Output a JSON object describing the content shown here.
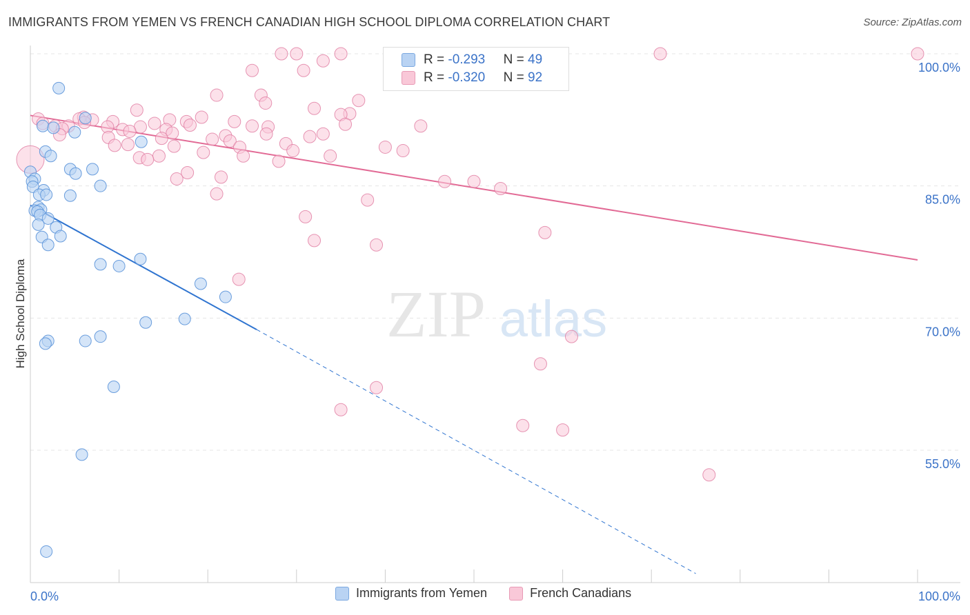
{
  "title": "IMMIGRANTS FROM YEMEN VS FRENCH CANADIAN HIGH SCHOOL DIPLOMA CORRELATION CHART",
  "source": "Source: ZipAtlas.com",
  "watermark": {
    "zip": "ZIP",
    "atlas": "atlas"
  },
  "colors": {
    "blue": "#5b93d9",
    "blue_fill": "#b9d3f3",
    "pink": "#e07aa0",
    "pink_fill": "#f9c8d8",
    "blue_line": "#2f74d0",
    "pink_line": "#e26a95"
  },
  "stats": {
    "row1": {
      "r_label": "R = ",
      "r_value": "-0.293",
      "n_label": "N = ",
      "n_value": "49"
    },
    "row2": {
      "r_label": "R = ",
      "r_value": "-0.320",
      "n_label": "N = ",
      "n_value": "92"
    }
  },
  "legend": {
    "series1": "Immigrants from Yemen",
    "series2": "French Canadians"
  },
  "chart_data": {
    "type": "scatter",
    "title": "IMMIGRANTS FROM YEMEN VS FRENCH CANADIAN HIGH SCHOOL DIPLOMA CORRELATION CHART",
    "xlabel": "",
    "ylabel": "High School Diploma",
    "xlim": [
      0,
      100
    ],
    "ylim": [
      41,
      102
    ],
    "x_tick_labels": [
      "0.0%",
      "100.0%"
    ],
    "y_ticks": [
      55,
      70,
      85,
      100
    ],
    "y_tick_labels": [
      "55.0%",
      "70.0%",
      "85.0%",
      "100.0%"
    ],
    "grid": true,
    "series": [
      {
        "name": "Immigrants from Yemen",
        "color": "#5b93d9",
        "trend": {
          "x": [
            0,
            25.5
          ],
          "y": [
            82.8,
            68.7
          ],
          "dashed_to": [
            75,
            41
          ]
        },
        "points": [
          [
            3.2,
            96.1
          ],
          [
            6.2,
            92.7
          ],
          [
            1.4,
            91.8
          ],
          [
            2.6,
            91.6
          ],
          [
            5.0,
            91.1
          ],
          [
            12.5,
            90.0
          ],
          [
            1.7,
            88.9
          ],
          [
            2.3,
            88.4
          ],
          [
            0.0,
            86.6
          ],
          [
            4.5,
            86.9
          ],
          [
            7.0,
            86.9
          ],
          [
            5.1,
            86.4
          ],
          [
            0.5,
            85.8
          ],
          [
            0.2,
            85.5
          ],
          [
            0.3,
            84.9
          ],
          [
            7.9,
            85.0
          ],
          [
            1.5,
            84.5
          ],
          [
            1.0,
            84.0
          ],
          [
            1.8,
            84.0
          ],
          [
            4.5,
            83.9
          ],
          [
            0.9,
            82.6
          ],
          [
            1.2,
            82.3
          ],
          [
            0.5,
            82.2
          ],
          [
            0.8,
            82.1
          ],
          [
            1.1,
            81.7
          ],
          [
            2.0,
            81.3
          ],
          [
            0.9,
            80.6
          ],
          [
            2.9,
            80.3
          ],
          [
            1.3,
            79.2
          ],
          [
            3.4,
            79.3
          ],
          [
            2.0,
            78.3
          ],
          [
            12.4,
            76.7
          ],
          [
            7.9,
            76.1
          ],
          [
            10.0,
            75.9
          ],
          [
            19.2,
            73.9
          ],
          [
            22.0,
            72.4
          ],
          [
            17.4,
            69.9
          ],
          [
            13.0,
            69.5
          ],
          [
            7.9,
            67.9
          ],
          [
            6.2,
            67.4
          ],
          [
            2.0,
            67.4
          ],
          [
            1.7,
            67.1
          ],
          [
            9.4,
            62.2
          ],
          [
            5.8,
            54.5
          ],
          [
            1.8,
            43.5
          ]
        ]
      },
      {
        "name": "French Canadians",
        "color": "#e07aa0",
        "trend": {
          "x": [
            0,
            100
          ],
          "y": [
            93.0,
            76.6
          ]
        },
        "points": [
          [
            28.3,
            100.0
          ],
          [
            30.0,
            100.0
          ],
          [
            35.0,
            100.0
          ],
          [
            47.8,
            100.0
          ],
          [
            71.0,
            100.0
          ],
          [
            100.0,
            100.0
          ],
          [
            33.0,
            99.2
          ],
          [
            25.0,
            98.1
          ],
          [
            30.8,
            98.1
          ],
          [
            21.0,
            95.3
          ],
          [
            26.0,
            95.3
          ],
          [
            37.0,
            94.7
          ],
          [
            26.5,
            94.4
          ],
          [
            32.0,
            93.8
          ],
          [
            12.0,
            93.6
          ],
          [
            36.0,
            93.2
          ],
          [
            35.0,
            93.1
          ],
          [
            19.3,
            92.8
          ],
          [
            6.0,
            92.8
          ],
          [
            0.9,
            92.6
          ],
          [
            5.5,
            92.6
          ],
          [
            7.0,
            92.5
          ],
          [
            15.7,
            92.5
          ],
          [
            23.0,
            92.3
          ],
          [
            9.3,
            92.3
          ],
          [
            17.6,
            92.3
          ],
          [
            6.1,
            92.2
          ],
          [
            1.4,
            92.1
          ],
          [
            35.5,
            92.0
          ],
          [
            14.0,
            92.1
          ],
          [
            18.0,
            91.9
          ],
          [
            25.0,
            91.8
          ],
          [
            2.8,
            91.8
          ],
          [
            12.4,
            91.7
          ],
          [
            4.3,
            91.8
          ],
          [
            8.7,
            91.7
          ],
          [
            15.3,
            91.4
          ],
          [
            44.0,
            91.8
          ],
          [
            26.8,
            91.7
          ],
          [
            3.6,
            91.5
          ],
          [
            10.4,
            91.4
          ],
          [
            11.2,
            91.2
          ],
          [
            16.0,
            91.0
          ],
          [
            33.0,
            90.9
          ],
          [
            26.6,
            90.9
          ],
          [
            3.3,
            90.8
          ],
          [
            22.0,
            90.7
          ],
          [
            31.5,
            90.6
          ],
          [
            8.8,
            90.5
          ],
          [
            14.8,
            90.4
          ],
          [
            20.5,
            90.3
          ],
          [
            22.5,
            90.1
          ],
          [
            28.8,
            89.8
          ],
          [
            9.5,
            89.6
          ],
          [
            11.0,
            89.7
          ],
          [
            16.2,
            89.5
          ],
          [
            40.0,
            89.4
          ],
          [
            23.6,
            89.4
          ],
          [
            29.6,
            89.0
          ],
          [
            42.0,
            89.0
          ],
          [
            19.5,
            88.8
          ],
          [
            14.5,
            88.4
          ],
          [
            24.0,
            88.4
          ],
          [
            33.8,
            88.4
          ],
          [
            12.3,
            88.2
          ],
          [
            13.2,
            88.0
          ],
          [
            28.0,
            87.8
          ],
          [
            0.0,
            88.0
          ],
          [
            17.7,
            86.5
          ],
          [
            16.5,
            85.8
          ],
          [
            21.5,
            86.0
          ],
          [
            46.7,
            85.5
          ],
          [
            50.0,
            85.5
          ],
          [
            53.0,
            84.7
          ],
          [
            21.0,
            84.1
          ],
          [
            38.0,
            83.4
          ],
          [
            31.0,
            81.5
          ],
          [
            58.0,
            79.7
          ],
          [
            32.0,
            78.8
          ],
          [
            39.0,
            78.3
          ],
          [
            23.5,
            74.4
          ],
          [
            61.0,
            67.9
          ],
          [
            57.5,
            64.8
          ],
          [
            39.0,
            62.1
          ],
          [
            35.0,
            59.6
          ],
          [
            55.5,
            57.8
          ],
          [
            60.0,
            57.3
          ],
          [
            76.5,
            52.2
          ]
        ]
      }
    ]
  }
}
